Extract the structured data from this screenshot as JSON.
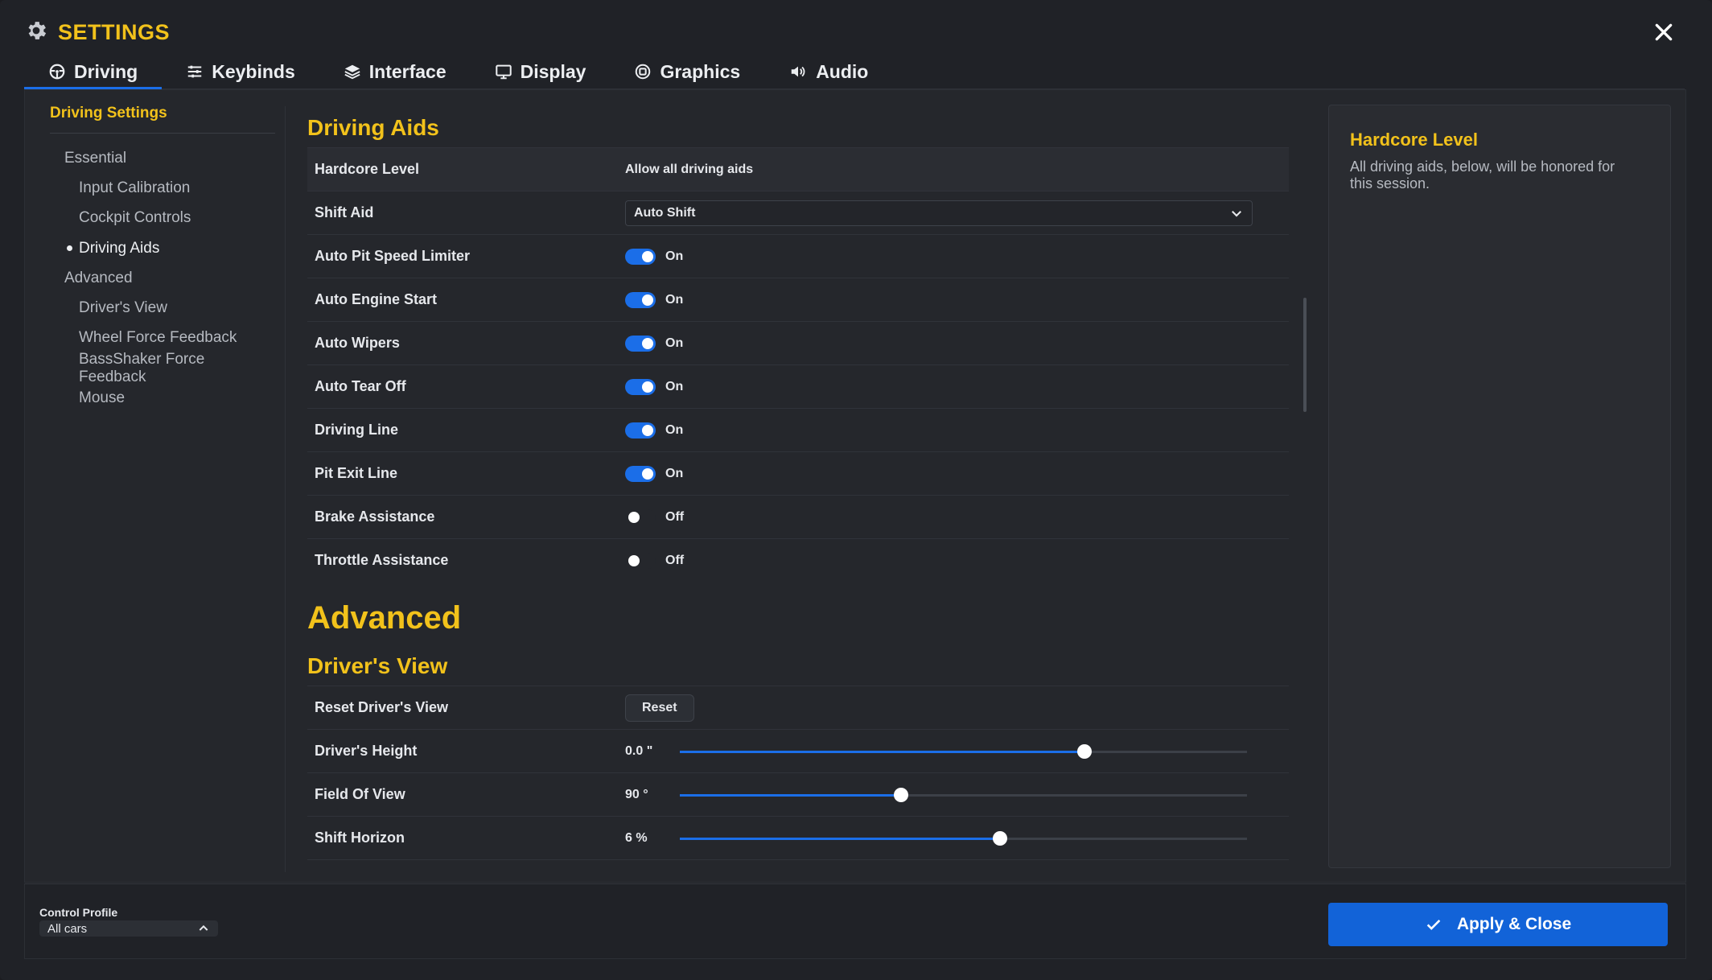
{
  "window": {
    "title": "SETTINGS"
  },
  "tabs": [
    {
      "label": "Driving",
      "icon": "steering-wheel-icon",
      "active": true
    },
    {
      "label": "Keybinds",
      "icon": "sliders-icon"
    },
    {
      "label": "Interface",
      "icon": "layers-icon"
    },
    {
      "label": "Display",
      "icon": "monitor-icon"
    },
    {
      "label": "Graphics",
      "icon": "chip-icon"
    },
    {
      "label": "Audio",
      "icon": "speaker-icon"
    }
  ],
  "nav": {
    "heading": "Driving Settings",
    "items": [
      {
        "label": "Essential",
        "level": 1
      },
      {
        "label": "Input Calibration",
        "level": 2
      },
      {
        "label": "Cockpit Controls",
        "level": 2
      },
      {
        "label": "Driving Aids",
        "level": 2,
        "current": true
      },
      {
        "label": "Advanced",
        "level": 1
      },
      {
        "label": "Driver's View",
        "level": 2
      },
      {
        "label": "Wheel Force Feedback",
        "level": 2
      },
      {
        "label": "BassShaker Force Feedback",
        "level": 2
      },
      {
        "label": "Mouse",
        "level": 2
      }
    ]
  },
  "driving_aids": {
    "title": "Driving Aids",
    "hardcore_level": {
      "label": "Hardcore Level",
      "value": "Allow all driving aids"
    },
    "shift_aid": {
      "label": "Shift Aid",
      "value": "Auto Shift"
    },
    "toggles": [
      {
        "label": "Auto Pit Speed Limiter",
        "state": "On",
        "on": true
      },
      {
        "label": "Auto Engine Start",
        "state": "On",
        "on": true
      },
      {
        "label": "Auto Wipers",
        "state": "On",
        "on": true
      },
      {
        "label": "Auto Tear Off",
        "state": "On",
        "on": true
      },
      {
        "label": "Driving Line",
        "state": "On",
        "on": true
      },
      {
        "label": "Pit Exit Line",
        "state": "On",
        "on": true
      },
      {
        "label": "Brake Assistance",
        "state": "Off",
        "on": false
      },
      {
        "label": "Throttle Assistance",
        "state": "Off",
        "on": false
      }
    ]
  },
  "advanced": {
    "title": "Advanced",
    "drivers_view": {
      "title": "Driver's View",
      "reset": {
        "label": "Reset Driver's View",
        "button": "Reset"
      },
      "sliders": [
        {
          "label": "Driver's Height",
          "value": "0.0 \"",
          "level": 0.714
        },
        {
          "label": "Field Of View",
          "value": "90 °",
          "level": 0.39
        },
        {
          "label": "Shift Horizon",
          "value": "6 %",
          "level": 0.564
        }
      ]
    }
  },
  "info": {
    "title": "Hardcore Level",
    "description": "All driving aids, below, will be honored for this session."
  },
  "footer": {
    "profile_label": "Control Profile",
    "profile_value": "All cars",
    "apply_label": "Apply & Close"
  },
  "colors": {
    "accent": "#f2c21b",
    "primary": "#1263d8",
    "toggle_on": "#1b6ee8"
  }
}
